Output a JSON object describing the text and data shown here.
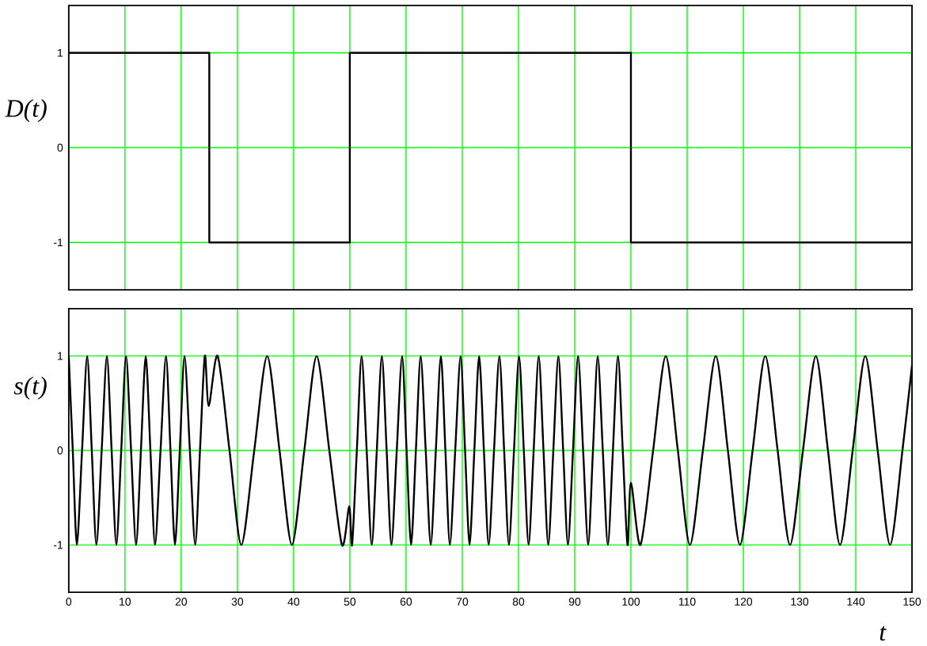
{
  "chart_data": [
    {
      "type": "step",
      "ylabel": "D(t)",
      "xlim": [
        0,
        150
      ],
      "ylim": [
        -1.5,
        1.5
      ],
      "xticks": [
        0,
        10,
        20,
        30,
        40,
        50,
        60,
        70,
        80,
        90,
        100,
        110,
        120,
        130,
        140,
        150
      ],
      "yticks": [
        -1,
        0,
        1
      ],
      "tick_labels": "y",
      "grid": true,
      "series": [
        {
          "color": "#000000",
          "x": [
            0,
            25,
            50,
            100,
            150
          ],
          "values": [
            1,
            -1,
            1,
            -1,
            -1
          ]
        }
      ]
    },
    {
      "type": "line",
      "ylabel": "s(t)",
      "xlabel": "t",
      "xlim": [
        0,
        150
      ],
      "ylim": [
        -1.5,
        1.5
      ],
      "xticks": [
        0,
        10,
        20,
        30,
        40,
        50,
        60,
        70,
        80,
        90,
        100,
        110,
        120,
        130,
        140,
        150
      ],
      "yticks": [
        -1,
        0,
        1
      ],
      "grid": true,
      "series": [
        {
          "color": "#000000",
          "x": [
            0,
            0.72,
            1.45,
            2.37,
            3.28,
            4.1,
            4.92,
            5.86,
            6.79,
            7.63,
            8.47,
            9.34,
            10.2,
            11.09,
            11.98,
            12.84,
            13.7,
            14.53,
            15.35,
            16.33,
            17.3,
            18.1,
            18.9,
            19.75,
            20.6,
            21.55,
            22.5,
            23.35,
            24.2,
            24.9,
            26.5,
            28.6,
            30.7,
            33.0,
            35.3,
            37.5,
            39.7,
            41.9,
            44.1,
            46.35,
            48.6,
            49.9,
            50.4,
            51.25,
            52.1,
            53.0,
            53.9,
            54.8,
            55.7,
            56.55,
            57.4,
            58.35,
            59.3,
            60.1,
            60.9,
            61.75,
            62.6,
            63.5,
            64.4,
            65.3,
            66.2,
            67.0,
            67.8,
            68.75,
            69.7,
            70.5,
            71.3,
            72.15,
            73.0,
            73.85,
            74.7,
            75.65,
            76.6,
            77.45,
            78.3,
            79.2,
            80.1,
            80.95,
            81.8,
            82.7,
            83.6,
            84.45,
            85.3,
            86.2,
            87.1,
            87.95,
            88.8,
            89.7,
            90.6,
            91.5,
            92.4,
            93.25,
            94.1,
            95.0,
            95.9,
            96.8,
            97.7,
            98.55,
            99.4,
            100.0,
            101.7,
            103.95,
            106.2,
            108.35,
            110.5,
            112.8,
            115.1,
            117.25,
            119.4,
            121.65,
            123.9,
            126.1,
            128.3,
            130.6,
            132.9,
            135.05,
            137.2,
            139.45,
            141.7,
            143.9,
            146.1,
            148.3,
            150
          ],
          "values": [
            1,
            0,
            -1,
            0,
            1,
            0,
            -1,
            0,
            1,
            0,
            -1,
            0,
            1,
            0,
            -1,
            0,
            1,
            0,
            -1,
            0,
            1,
            0,
            -1,
            0,
            1,
            0,
            -1,
            0,
            1,
            0.47,
            1,
            0,
            -1,
            0,
            1,
            0,
            -1,
            0,
            1,
            0,
            -1,
            -0.59,
            -1,
            0,
            1,
            0,
            -1,
            0,
            1,
            0,
            -1,
            0,
            1,
            0,
            -1,
            0,
            1,
            0,
            -1,
            0,
            1,
            0,
            -1,
            0,
            1,
            0,
            -1,
            0,
            1,
            0,
            -1,
            0,
            1,
            0,
            -1,
            0,
            1,
            0,
            -1,
            0,
            1,
            0,
            -1,
            0,
            1,
            0,
            -1,
            0,
            1,
            0,
            -1,
            0,
            1,
            0,
            -1,
            0,
            1,
            0,
            -1,
            -0.34,
            -1,
            0,
            1,
            0,
            -1,
            0,
            1,
            0,
            -1,
            0,
            1,
            0,
            -1,
            0,
            1,
            0,
            -1,
            0,
            1,
            0,
            -1,
            0,
            0.9
          ]
        }
      ]
    }
  ]
}
